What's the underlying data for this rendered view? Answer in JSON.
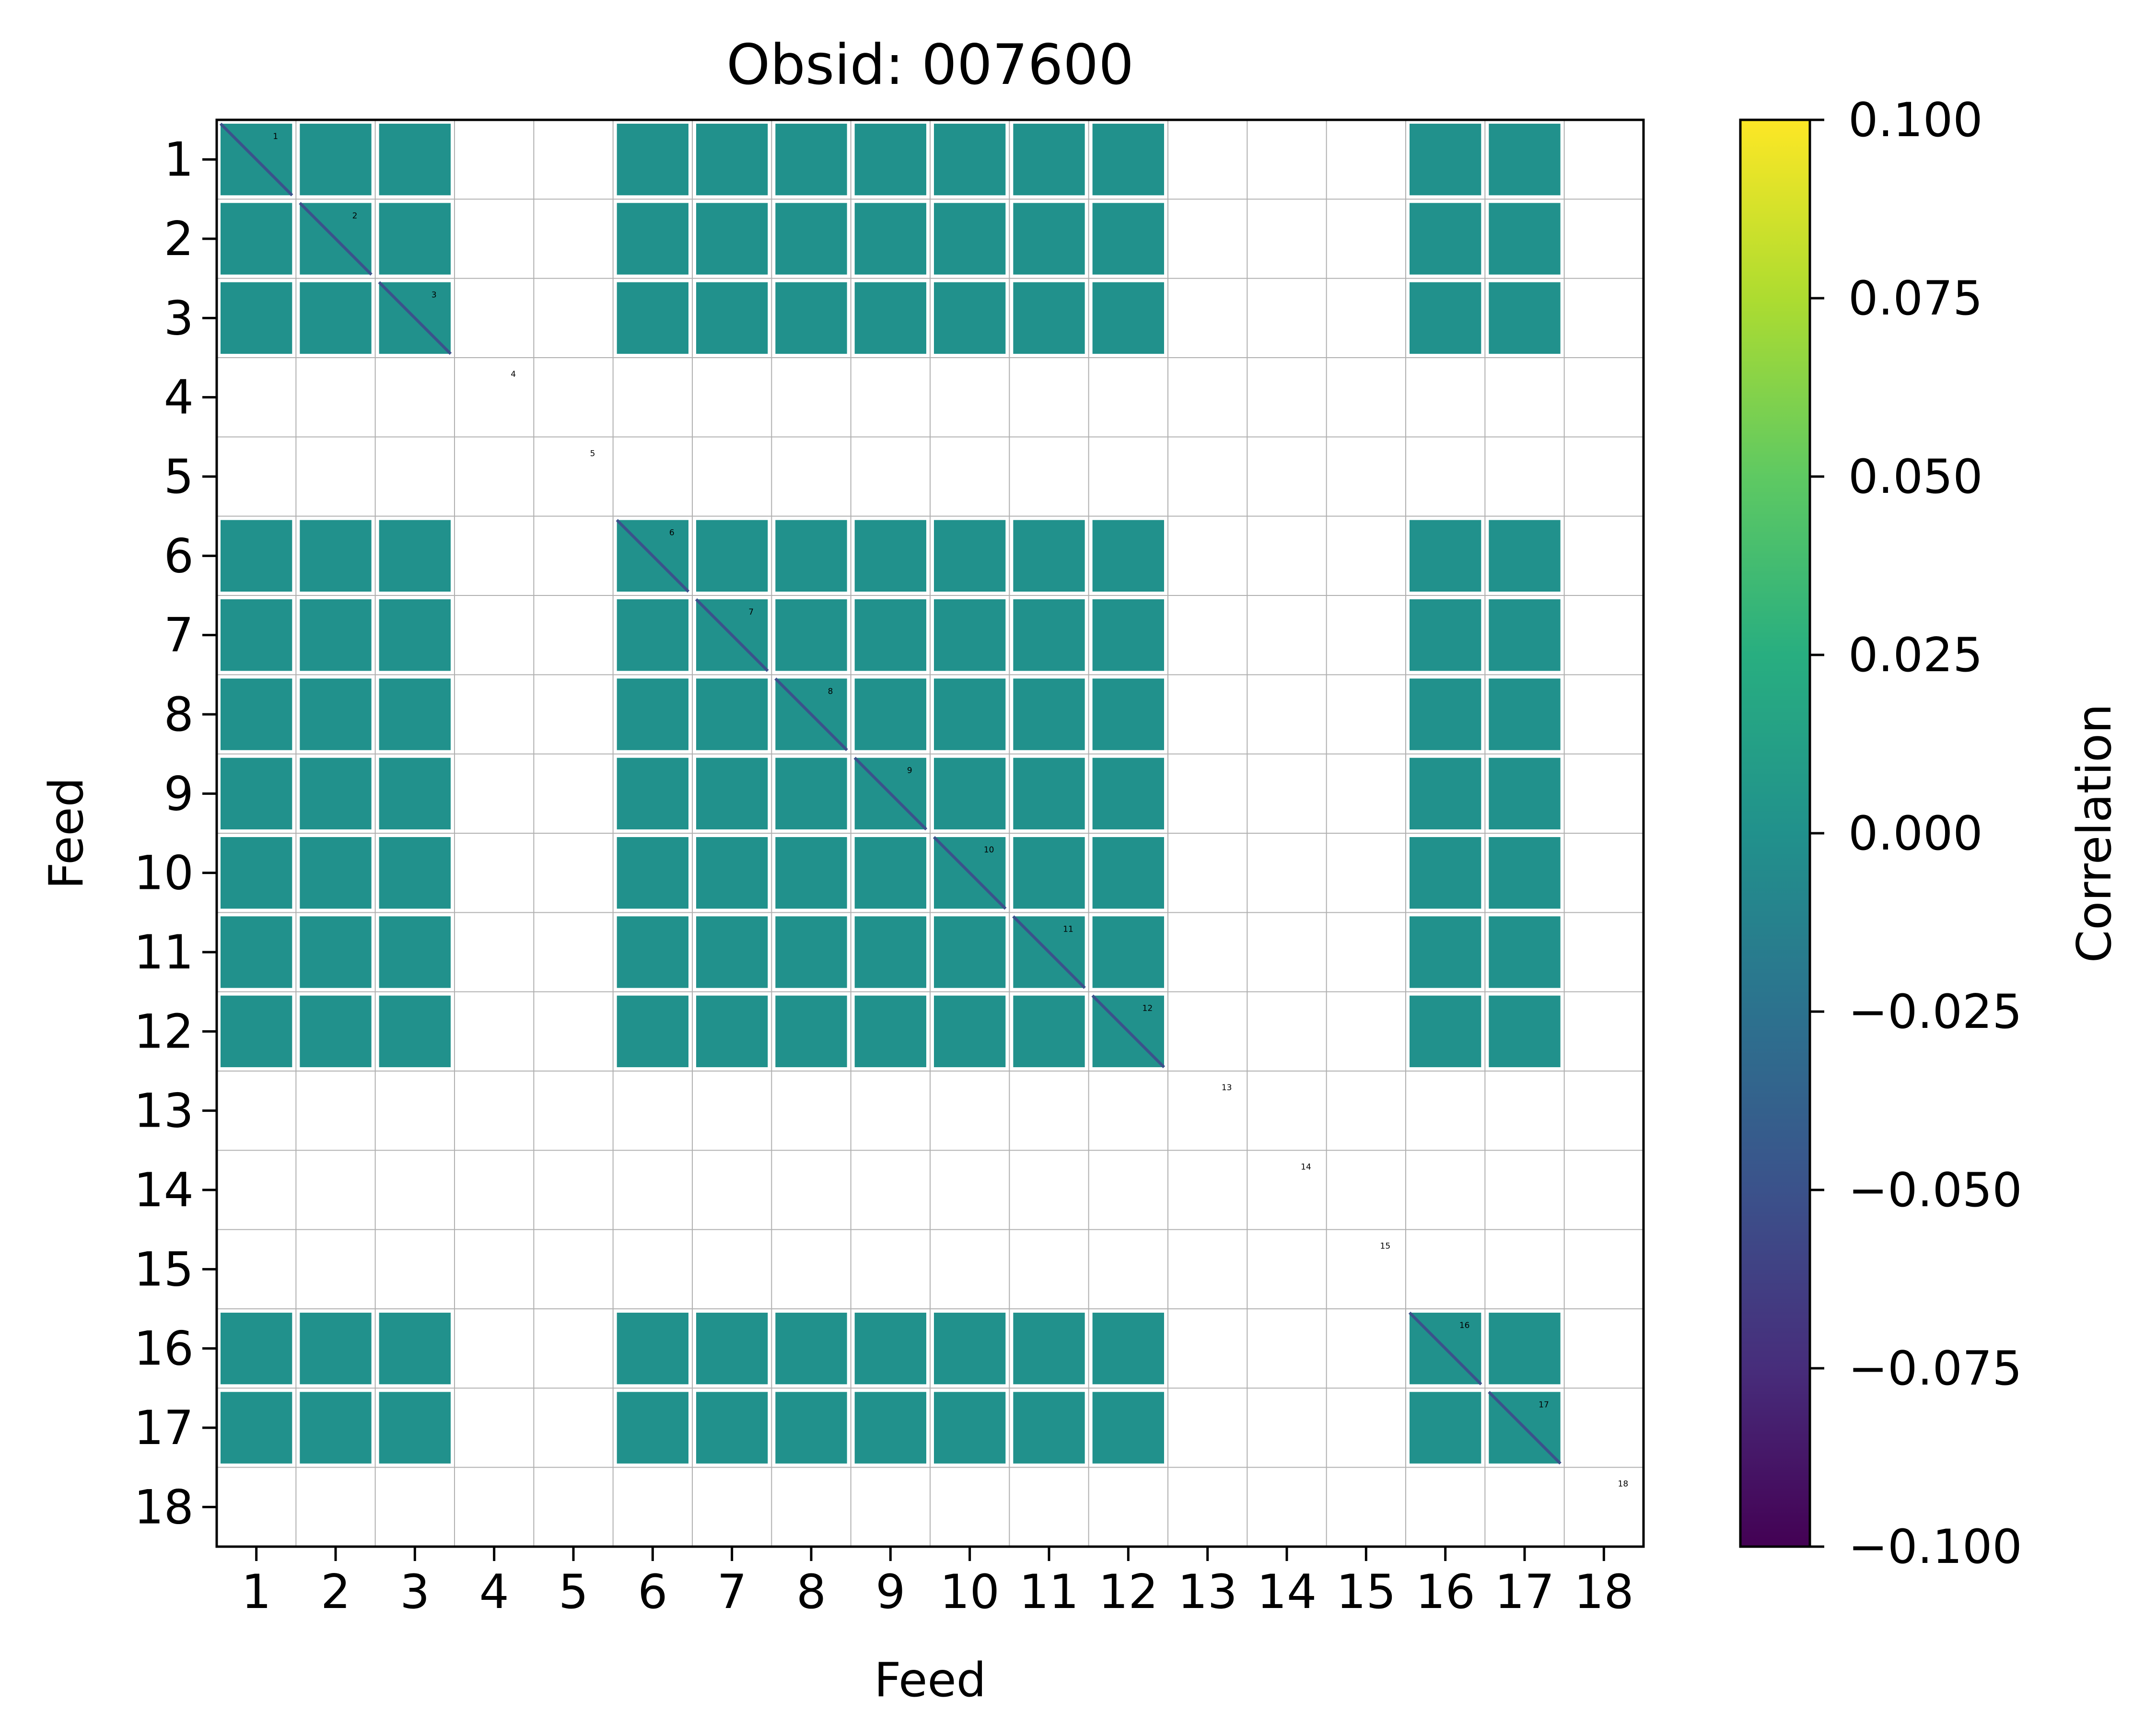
{
  "chart_data": {
    "type": "heatmap",
    "title": "Obsid: 007600",
    "xlabel": "Feed",
    "ylabel": "Feed",
    "feeds": [
      "1",
      "2",
      "3",
      "4",
      "5",
      "6",
      "7",
      "8",
      "9",
      "10",
      "11",
      "12",
      "13",
      "14",
      "15",
      "16",
      "17",
      "18"
    ],
    "active_feeds": [
      1,
      2,
      3,
      6,
      7,
      8,
      9,
      10,
      11,
      12,
      16,
      17
    ],
    "cell_value": 0.0,
    "diagonal_value": -0.03,
    "colorbar": {
      "label": "Correlation",
      "vmin": -0.1,
      "vmax": 0.1,
      "ticks": [
        0.1,
        0.075,
        0.05,
        0.025,
        0.0,
        -0.025,
        -0.05,
        -0.075,
        -0.1
      ],
      "tick_labels": [
        "0.100",
        "0.075",
        "0.050",
        "0.025",
        "0.000",
        "−0.025",
        "−0.050",
        "−0.075",
        "−0.100"
      ],
      "colormap": "viridis"
    },
    "colors": {
      "cell": "#21918c",
      "diagonal": "#3b528b",
      "grid": "#b0b0b0",
      "frame": "#000000"
    }
  }
}
